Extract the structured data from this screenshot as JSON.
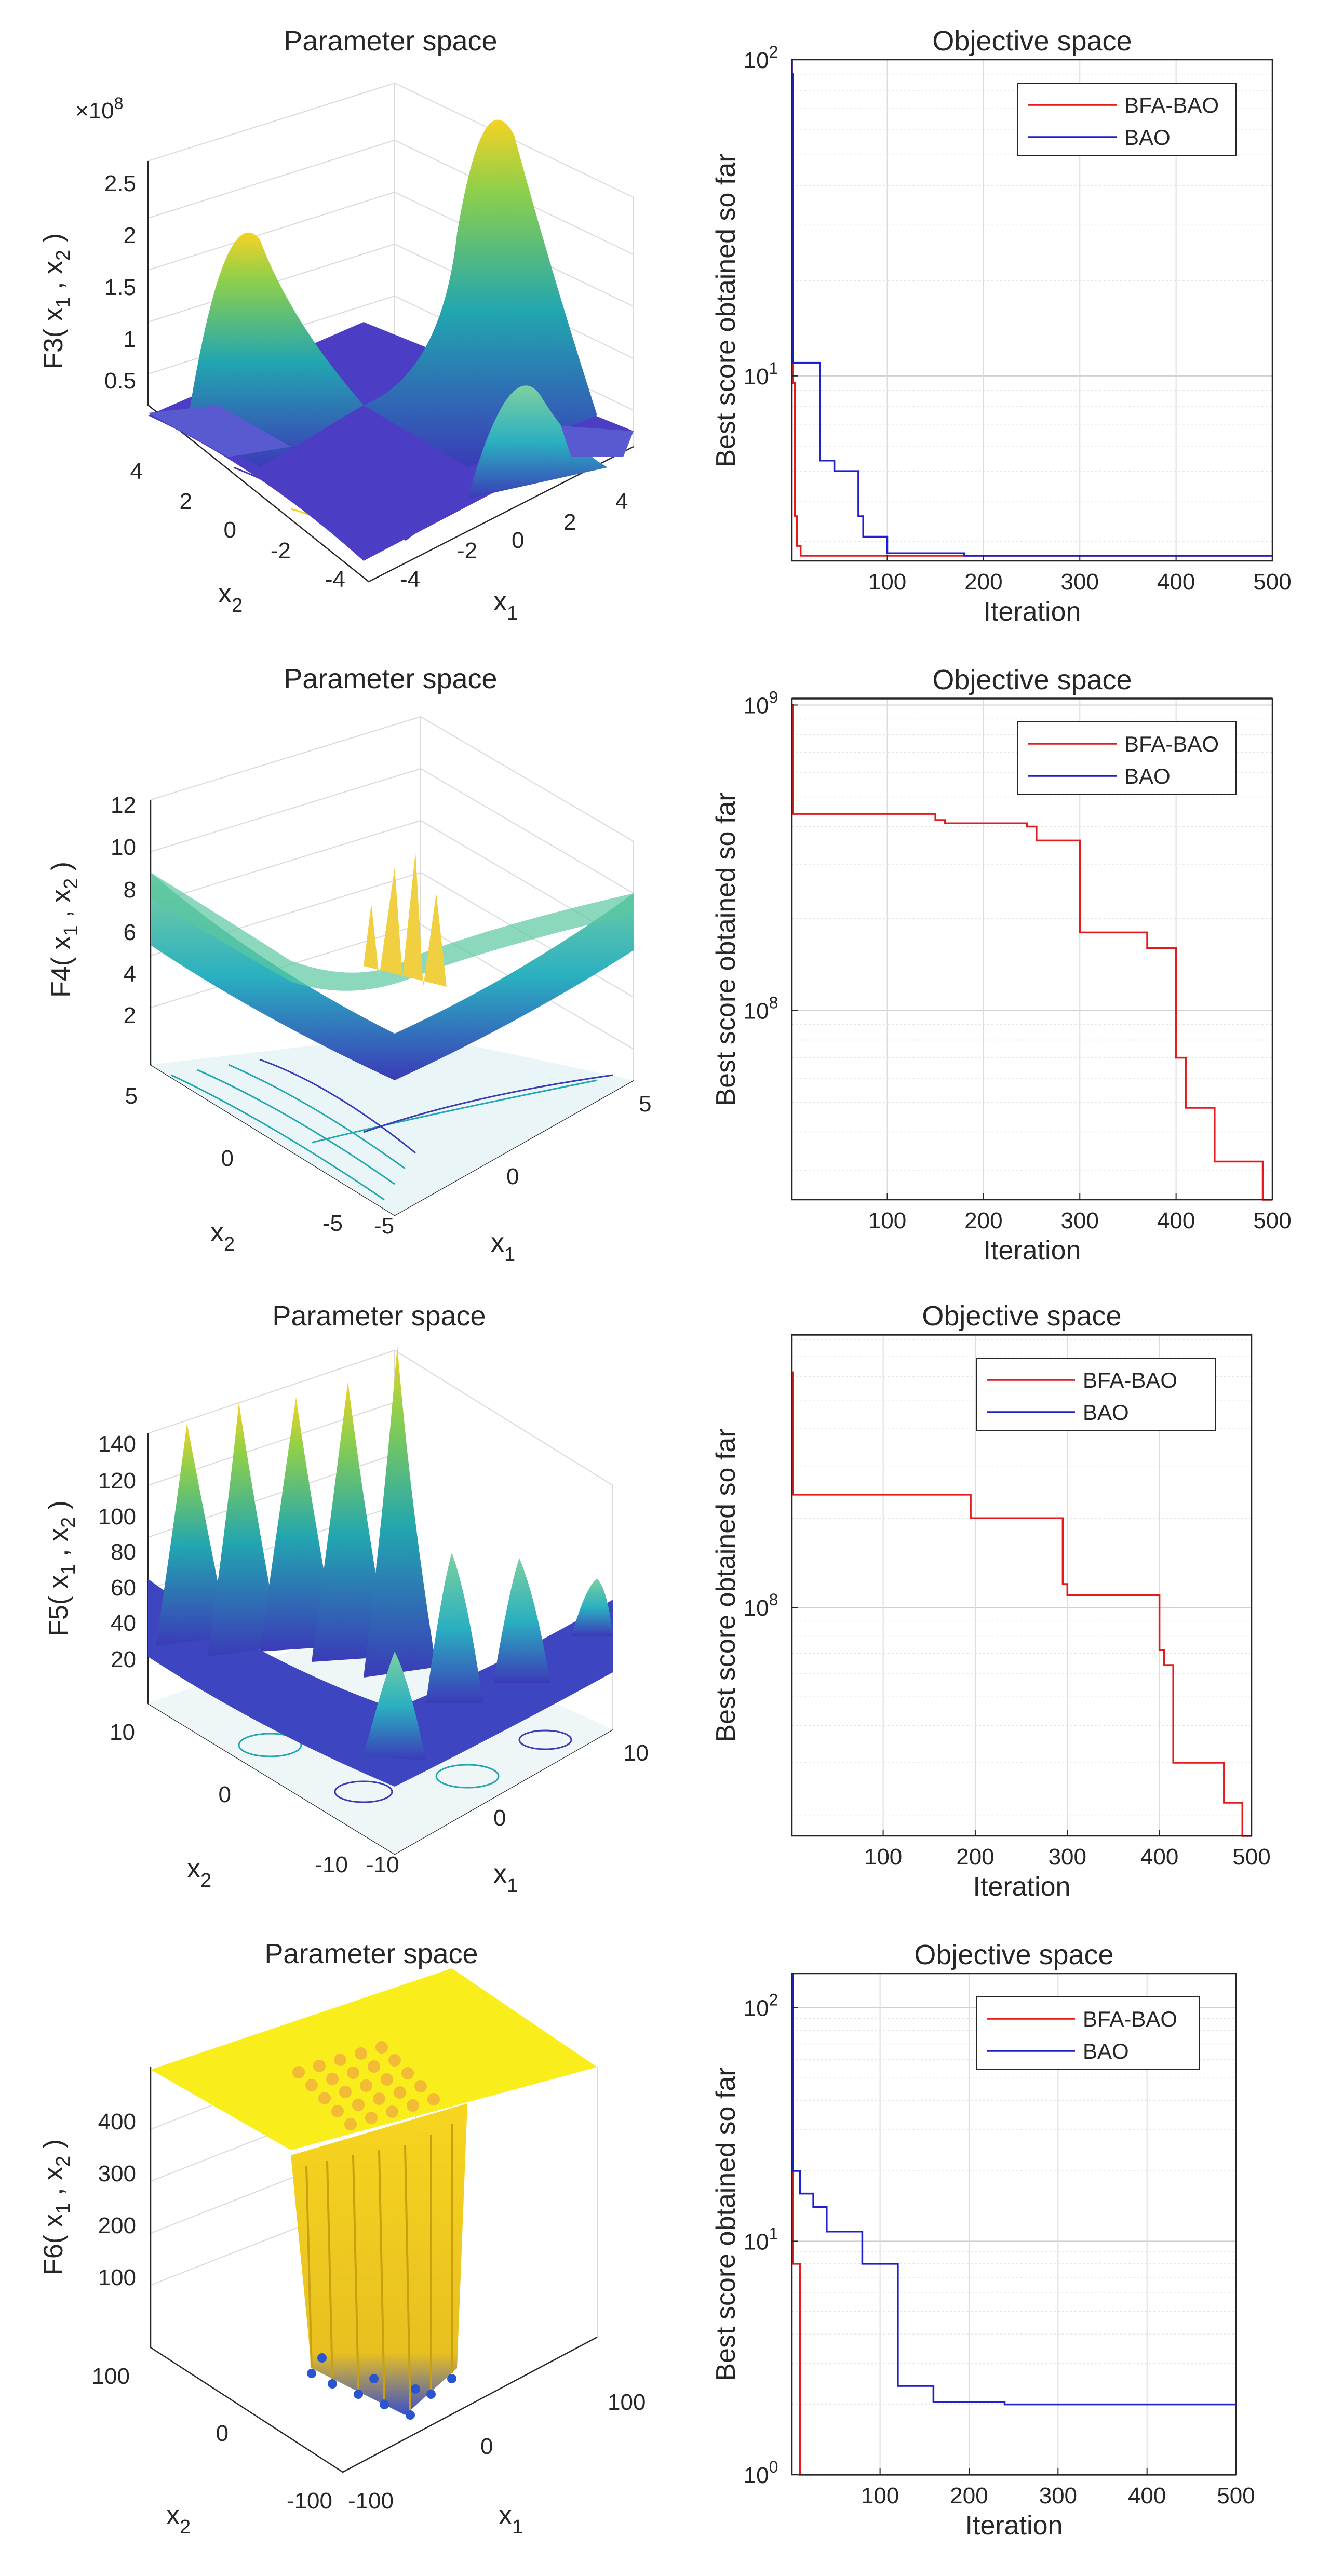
{
  "figure": {
    "panels": [
      {
        "surface_title": "Parameter space",
        "zlabel": "F3( x_1 , x_2 )",
        "zlabel_main": "F3( x",
        "zlabel_sub1": "1",
        "zlabel_mid": " , x",
        "zlabel_sub2": "2",
        "zlabel_end": " )",
        "exponent_prefix": "×10",
        "exponent_power": "8",
        "zticks": [
          "0.5",
          "1",
          "1.5",
          "2",
          "2.5"
        ],
        "x1ticks": [
          "-4",
          "-2",
          "0",
          "2",
          "4"
        ],
        "x2ticks": [
          "4",
          "2",
          "0",
          "-2",
          "-4"
        ],
        "x1label": "x",
        "x1sub": "1",
        "x2label": "x",
        "x2sub": "2"
      },
      {
        "surface_title": "Parameter space",
        "zlabel": "F4( x_1 , x_2 )",
        "zlabel_main": "F4( x",
        "zlabel_sub1": "1",
        "zlabel_mid": " , x",
        "zlabel_sub2": "2",
        "zlabel_end": " )",
        "zticks": [
          "2",
          "4",
          "6",
          "8",
          "10",
          "12"
        ],
        "x1ticks": [
          "-5",
          "0",
          "5"
        ],
        "x2ticks": [
          "5",
          "0",
          "-5"
        ],
        "x1label": "x",
        "x1sub": "1",
        "x2label": "x",
        "x2sub": "2"
      },
      {
        "surface_title": "Parameter space",
        "zlabel": "F5( x_1 , x_2 )",
        "zlabel_main": "F5( x",
        "zlabel_sub1": "1",
        "zlabel_mid": " , x",
        "zlabel_sub2": "2",
        "zlabel_end": " )",
        "zticks": [
          "20",
          "40",
          "60",
          "80",
          "100",
          "120",
          "140"
        ],
        "x1ticks": [
          "-10",
          "0",
          "10"
        ],
        "x2ticks": [
          "10",
          "0",
          "-10"
        ],
        "x1label": "x",
        "x1sub": "1",
        "x2label": "x",
        "x2sub": "2"
      },
      {
        "surface_title": "Parameter space",
        "zlabel": "F6( x_1 , x_2 )",
        "zlabel_main": "F6( x",
        "zlabel_sub1": "1",
        "zlabel_mid": " , x",
        "zlabel_sub2": "2",
        "zlabel_end": " )",
        "zticks": [
          "100",
          "200",
          "300",
          "400"
        ],
        "x1ticks": [
          "-100",
          "0",
          "100"
        ],
        "x2ticks": [
          "100",
          "0",
          "-100"
        ],
        "x1label": "x",
        "x1sub": "1",
        "x2label": "x",
        "x2sub": "2"
      }
    ]
  },
  "colors": {
    "bfa_bao": "#e41a1c",
    "bao": "#1f1fd0",
    "axis": "#262626",
    "grid": "#d9d9d9",
    "surface_low": "#3b3bb8",
    "surface_mid": "#21a8a8",
    "surface_high": "#f6d223",
    "surface_top": "#f9f21c"
  },
  "chart_data": [
    {
      "type": "line",
      "title": "Objective space",
      "xlabel": "Iteration",
      "ylabel": "Best score obtained so far",
      "yscale": "log",
      "xlim": [
        1,
        500
      ],
      "ylim": [
        2.6,
        100
      ],
      "xticks": [
        100,
        200,
        300,
        400,
        500
      ],
      "yticks": [
        10,
        100
      ],
      "ytick_labels": [
        {
          "base": "10",
          "exp": "1"
        },
        {
          "base": "10",
          "exp": "2"
        }
      ],
      "legend": "top-right",
      "series": [
        {
          "name": "BFA-BAO",
          "x": [
            1,
            2,
            4,
            4,
            6,
            6,
            10,
            10,
            500
          ],
          "y": [
            100,
            9.5,
            9.5,
            3.6,
            3.6,
            2.9,
            2.9,
            2.7,
            2.7
          ]
        },
        {
          "name": "BAO",
          "x": [
            1,
            1,
            2,
            2,
            30,
            30,
            45,
            45,
            70,
            70,
            75,
            75,
            100,
            100,
            180,
            180,
            500
          ],
          "y": [
            100,
            90,
            90,
            11,
            11,
            5.4,
            5.4,
            5.0,
            5.0,
            3.6,
            3.6,
            3.1,
            3.1,
            2.75,
            2.75,
            2.7,
            2.7
          ]
        }
      ]
    },
    {
      "type": "line",
      "title": "Objective space",
      "xlabel": "Iteration",
      "ylabel": "Best score obtained so far",
      "yscale": "log",
      "xlim": [
        1,
        500
      ],
      "ylim": [
        24000000,
        1050000000
      ],
      "xticks": [
        100,
        200,
        300,
        400,
        500
      ],
      "yticks": [
        100000000,
        1000000000
      ],
      "ytick_labels": [
        {
          "base": "10",
          "exp": "8"
        },
        {
          "base": "10",
          "exp": "9"
        }
      ],
      "legend": "top-right",
      "series": [
        {
          "name": "BFA-BAO",
          "x": [
            1,
            2,
            2,
            150,
            150,
            160,
            160,
            245,
            245,
            255,
            255,
            300,
            300,
            370,
            370,
            400,
            400,
            410,
            410,
            440,
            440,
            490,
            490,
            500
          ],
          "y": [
            1000000000,
            1000000000,
            440000000,
            440000000,
            420000000,
            420000000,
            410000000,
            410000000,
            400000000,
            400000000,
            360000000,
            360000000,
            180000000,
            180000000,
            160000000,
            160000000,
            70000000,
            70000000,
            48000000,
            48000000,
            32000000,
            32000000,
            24000000,
            24000000
          ]
        },
        {
          "name": "BAO",
          "x": [
            1,
            500
          ],
          "y": [
            1050000000,
            1050000000
          ]
        }
      ]
    },
    {
      "type": "line",
      "title": "Objective space",
      "xlabel": "Iteration",
      "ylabel": "Best score obtained so far",
      "yscale": "log",
      "xlim": [
        1,
        500
      ],
      "ylim": [
        17000000,
        830000000
      ],
      "xticks": [
        100,
        200,
        300,
        400,
        500
      ],
      "yticks": [
        100000000
      ],
      "ytick_labels": [
        {
          "base": "10",
          "exp": "8"
        }
      ],
      "legend": "top-right",
      "series": [
        {
          "name": "BFA-BAO",
          "x": [
            1,
            2,
            2,
            195,
            195,
            295,
            295,
            300,
            300,
            400,
            400,
            405,
            405,
            415,
            415,
            470,
            470,
            490,
            490,
            500
          ],
          "y": [
            620000000,
            620000000,
            240000000,
            240000000,
            200000000,
            200000000,
            120000000,
            120000000,
            110000000,
            110000000,
            72000000,
            72000000,
            64000000,
            64000000,
            30000000,
            30000000,
            22000000,
            22000000,
            17000000,
            17000000
          ]
        },
        {
          "name": "BAO",
          "x": [
            1,
            500
          ],
          "y": [
            830000000,
            830000000
          ]
        }
      ]
    },
    {
      "type": "line",
      "title": "Objective space",
      "xlabel": "Iteration",
      "ylabel": "Best score obtained so far",
      "yscale": "log",
      "xlim": [
        1,
        500
      ],
      "ylim": [
        1,
        140
      ],
      "xticks": [
        100,
        200,
        300,
        400,
        500
      ],
      "yticks": [
        1,
        10,
        100
      ],
      "ytick_labels": [
        {
          "base": "10",
          "exp": "0"
        },
        {
          "base": "10",
          "exp": "1"
        },
        {
          "base": "10",
          "exp": "2"
        }
      ],
      "legend": "top-right",
      "series": [
        {
          "name": "BFA-BAO",
          "x": [
            1,
            1,
            2,
            2,
            10,
            10,
            500
          ],
          "y": [
            140,
            30,
            30,
            8.0,
            8.0,
            1.0,
            1.0
          ]
        },
        {
          "name": "BAO",
          "x": [
            1,
            2,
            2,
            10,
            10,
            25,
            25,
            40,
            40,
            80,
            80,
            120,
            120,
            160,
            160,
            240,
            240,
            500
          ],
          "y": [
            140,
            140,
            20,
            20,
            16,
            16,
            14,
            14,
            11,
            11,
            8,
            8,
            2.4,
            2.4,
            2.05,
            2.05,
            2.0,
            2.0
          ]
        }
      ]
    }
  ]
}
